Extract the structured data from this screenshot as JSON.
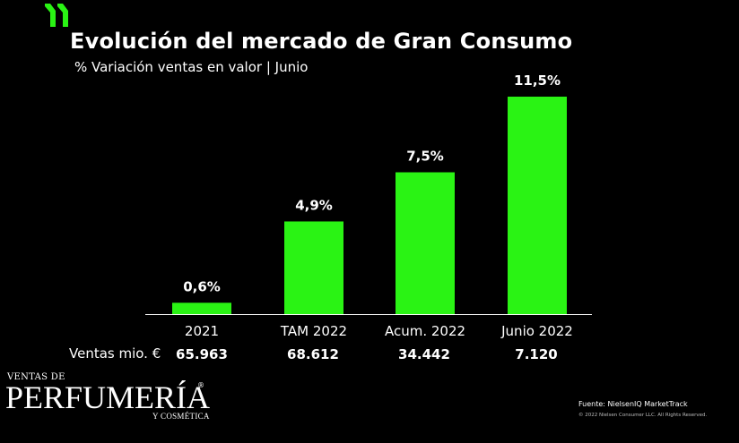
{
  "header": {
    "title": "Evolución del mercado de Gran Consumo",
    "subtitle": "% Variación ventas en valor | Junio"
  },
  "colors": {
    "bar": "#2AF314",
    "background": "#000000",
    "text": "#FFFFFF",
    "axis": "#FFFFFF"
  },
  "chart_data": {
    "type": "bar",
    "categories": [
      "2021",
      "TAM 2022",
      "Acum. 2022",
      "Junio 2022"
    ],
    "values": [
      0.6,
      4.9,
      7.5,
      11.5
    ],
    "data_labels": [
      "0,6%",
      "4,9%",
      "7,5%",
      "11,5%"
    ],
    "title": "Evolución del mercado de Gran Consumo",
    "subtitle": "% Variación ventas en valor | Junio",
    "xlabel": "",
    "ylabel": "",
    "ylim": [
      0,
      11.5
    ],
    "grid": false,
    "legend": "none"
  },
  "sales": {
    "label": "Ventas mio. €",
    "values": [
      "65.963",
      "68.612",
      "34.442",
      "7.120"
    ]
  },
  "brand": {
    "top": "VENTAS DE",
    "name": "PERFUMERÍA",
    "registered": "®",
    "bottom": "Y COSMÉTICA"
  },
  "footer": {
    "source": "Fuente: NielsenIQ MarketTrack",
    "copyright": "© 2022 Nielsen Consumer LLC. All Rights Reserved."
  }
}
